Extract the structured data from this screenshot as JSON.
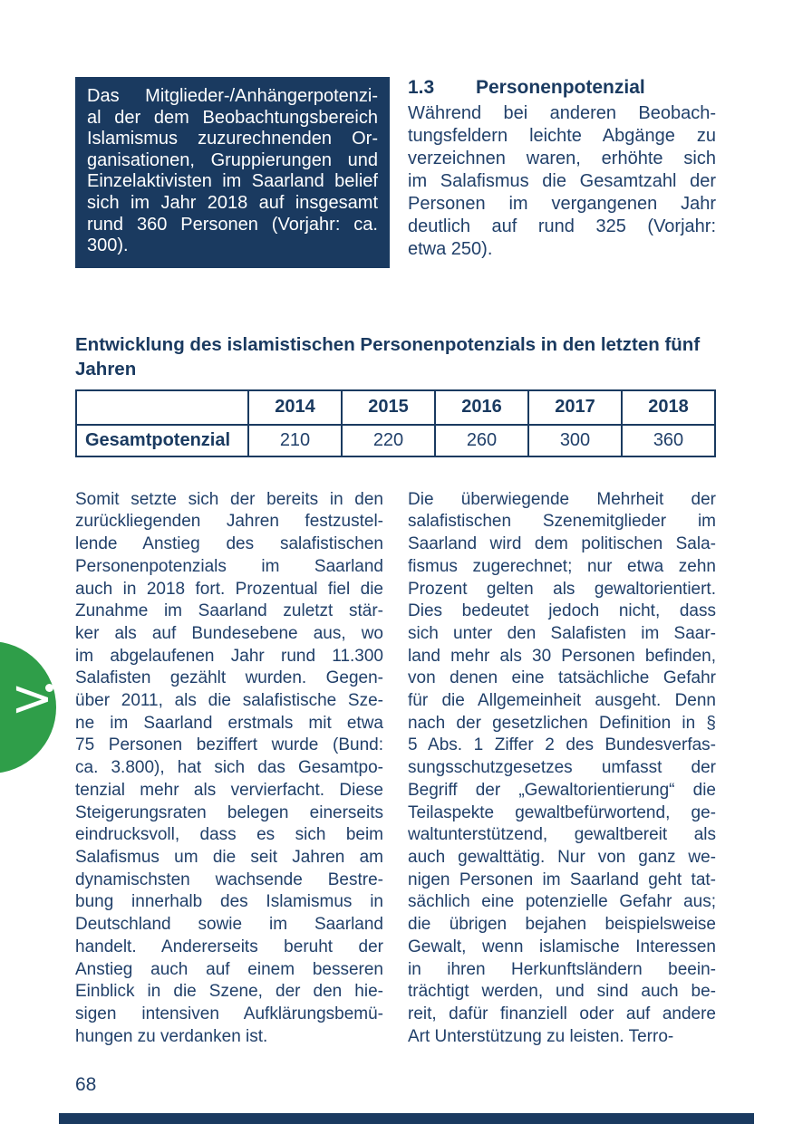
{
  "page": {
    "number": "68",
    "accent_navy": "#1a3a60",
    "accent_green": "#2f9e49"
  },
  "highlight_box": {
    "lines": [
      "Das Mitglieder-/Anhängerpotenzi-",
      "al der dem Beobachtungsbereich",
      "Islamismus zuzurechnenden Or-",
      "ganisationen, Gruppierungen und",
      "Einzelaktivisten im Saarland belief",
      "sich im Jahr 2018 auf insgesamt",
      "rund 360 Personen (Vorjahr: ca.",
      "300)."
    ]
  },
  "section": {
    "number": "1.3",
    "title": "Personenpotenzial",
    "intro_lines": [
      "Während bei anderen Beobach-",
      "tungsfeldern leichte Abgänge zu",
      "verzeichnen waren, erhöhte sich",
      "im Salafismus die Gesamtzahl der",
      "Personen im vergangenen Jahr",
      "deutlich auf rund 325 (Vorjahr:",
      "etwa 250)."
    ]
  },
  "table": {
    "heading_lines": [
      "Entwicklung des islamistischen Personenpotenzials in den letzten fünf",
      "Jahren"
    ],
    "columns": [
      "",
      "2014",
      "2015",
      "2016",
      "2017",
      "2018"
    ],
    "rows": [
      {
        "label": "Gesamtpotenzial",
        "values": [
          "210",
          "220",
          "260",
          "300",
          "360"
        ]
      }
    ]
  },
  "body": {
    "left_lines": [
      "Somit setzte sich der bereits in den",
      "zurückliegenden Jahren festzustel-",
      "lende Anstieg des salafistischen",
      "Personenpotenzials im Saarland",
      "auch in 2018 fort. Prozentual fiel die",
      "Zunahme im Saarland zuletzt stär-",
      "ker als auf Bundesebene aus, wo",
      "im abgelaufenen Jahr rund 11.300",
      "Salafisten gezählt wurden. Gegen-",
      "über 2011, als die salafistische Sze-",
      "ne im Saarland erstmals mit etwa",
      "75 Personen beziffert wurde (Bund:",
      "ca. 3.800), hat sich das Gesamtpo-",
      "tenzial mehr als vervierfacht. Diese",
      "Steigerungsraten belegen einerseits",
      "eindrucksvoll, dass es sich beim",
      "Salafismus um die seit Jahren am",
      "dynamischsten wachsende Bestre-",
      "bung innerhalb des Islamismus in",
      "Deutschland sowie im Saarland",
      "handelt. Andererseits beruht der",
      "Anstieg auch auf einem besseren",
      "Einblick in die Szene, der den hie-",
      "sigen intensiven Aufklärungsbemü-",
      "hungen zu verdanken ist."
    ],
    "right_lines": [
      "Die überwiegende Mehrheit der",
      "salafistischen Szenemitglieder im",
      "Saarland wird dem politischen Sala-",
      "fismus zugerechnet; nur etwa zehn",
      "Prozent gelten als gewaltorientiert.",
      "Dies bedeutet jedoch nicht, dass",
      "sich unter den Salafisten im Saar-",
      "land mehr als 30 Personen befinden,",
      "von denen eine tatsächliche Gefahr",
      "für die Allgemeinheit ausgeht. Denn",
      "nach der gesetzlichen Definition in §",
      "5 Abs. 1 Ziffer 2 des Bundesverfas-",
      "sungsschutzgesetzes umfasst der",
      "Begriff der „Gewaltorientierung“ die",
      "Teilaspekte gewaltbefürwortend, ge-",
      "waltunterstützend, gewaltbereit als",
      "auch gewalttätig. Nur von ganz we-",
      "nigen Personen im Saarland geht tat-",
      "sächlich eine potenzielle Gefahr aus;",
      "die übrigen bejahen beispielsweise",
      "Gewalt, wenn islamische Interessen",
      "in ihren Herkunftsländern beein-",
      "trächtigt werden, und sind auch be-",
      "reit, dafür finanziell oder auf andere",
      "Art Unterstützung zu leisten. Terro-"
    ]
  },
  "side_tab": {
    "glyph": ">"
  }
}
